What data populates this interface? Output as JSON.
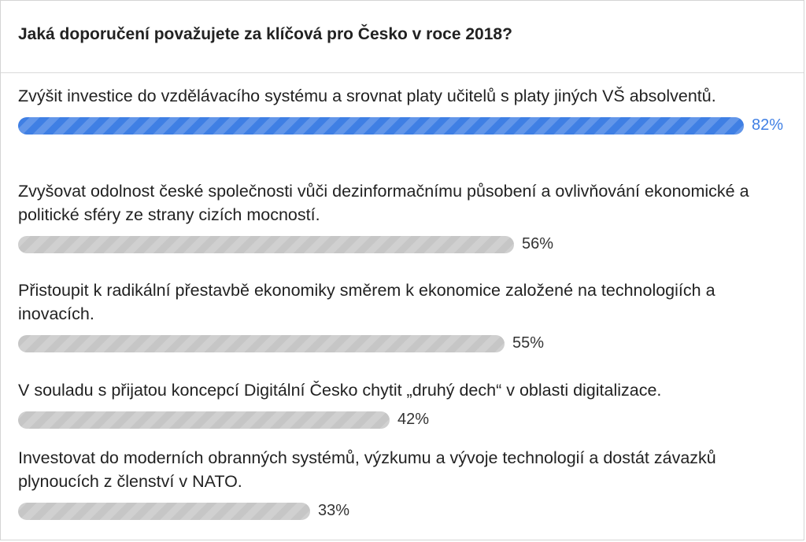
{
  "poll": {
    "question": "Jaká doporučení považujete za klíčová pro Česko v roce 2018?"
  },
  "chart_data": {
    "type": "bar",
    "orientation": "horizontal",
    "title": "Jaká doporučení považujete za klíčová pro Česko v roce 2018?",
    "categories": [
      "Zvýšit investice do vzdělávacího systému a srovnat platy učitelů s platy jiných VŠ absolventů.",
      "Zvyšovat odolnost české společnosti vůči dezinformačnímu působení a ovlivňování ekonomické a politické sféry ze strany cizích mocností.",
      "Přistoupit k radikální přestavbě ekonomiky směrem k ekonomice založené na technologiích a inovacích.",
      "V souladu s přijatou koncepcí Digitální Česko chytit „druhý dech“ v oblasti digitalizace.",
      "Investovat do moderních obranných systémů, výzkumu a vývoje technologií a dostát závazků plynoucích z členství v NATO."
    ],
    "values": [
      82,
      56,
      55,
      42,
      33
    ],
    "value_labels": [
      "82%",
      "56%",
      "55%",
      "42%",
      "33%"
    ],
    "unit": "%",
    "xlim": [
      0,
      82
    ],
    "colors": {
      "leader": "#3f7fe4",
      "other": "#c6c6c6"
    }
  }
}
